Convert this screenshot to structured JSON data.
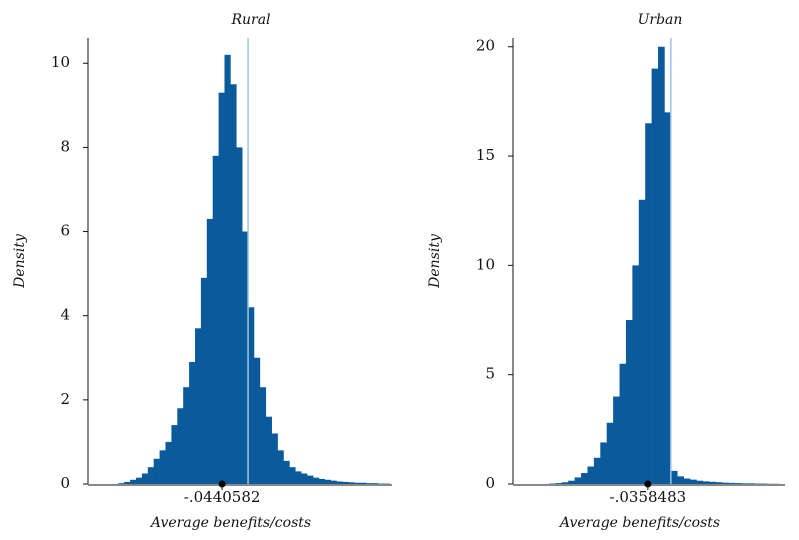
{
  "chart_data": [
    {
      "type": "histogram",
      "title": "Rural",
      "xlabel": "Average benefits/costs",
      "ylabel": "Density",
      "bins": [
        -0.22,
        -0.21,
        -0.2,
        -0.19,
        -0.18,
        -0.17,
        -0.16,
        -0.15,
        -0.14,
        -0.13,
        -0.12,
        -0.11,
        -0.1,
        -0.09,
        -0.08,
        -0.07,
        -0.06,
        -0.05,
        -0.04,
        -0.03,
        -0.02,
        -0.01,
        0,
        0.01,
        0.02,
        0.03,
        0.04,
        0.05,
        0.06,
        0.07,
        0.08,
        0.09,
        0.1,
        0.11,
        0.12,
        0.13,
        0.14,
        0.15,
        0.16,
        0.17,
        0.18,
        0.19,
        0.2,
        0.21,
        0.22,
        0.23,
        0.24
      ],
      "values": [
        0.02,
        0.05,
        0.1,
        0.15,
        0.25,
        0.4,
        0.6,
        0.8,
        1.0,
        1.4,
        1.8,
        2.3,
        2.9,
        3.7,
        4.9,
        6.3,
        7.8,
        9.3,
        10.2,
        9.5,
        8.0,
        6.0,
        4.2,
        3.0,
        2.3,
        1.6,
        1.2,
        0.8,
        0.55,
        0.4,
        0.3,
        0.25,
        0.2,
        0.15,
        0.12,
        0.1,
        0.08,
        0.06,
        0.05,
        0.04,
        0.03,
        0.03,
        0.02,
        0.02,
        0.01,
        0.01
      ],
      "color": "#0b5a9c",
      "xlim": [
        -0.268,
        0.244
      ],
      "xticks": [
        {
          "value": -0.0440582,
          "label": "-.0440582"
        }
      ],
      "ylim": [
        0,
        10.6
      ],
      "yticks": [
        0,
        2,
        4,
        6,
        8,
        10
      ],
      "refline": 0,
      "refline_color": "#9ec5e3"
    },
    {
      "type": "histogram",
      "title": "Urban",
      "xlabel": "Average benefits/costs",
      "ylabel": "Density",
      "bins": [
        -0.19,
        -0.18,
        -0.17,
        -0.16,
        -0.15,
        -0.14,
        -0.13,
        -0.12,
        -0.11,
        -0.1,
        -0.09,
        -0.08,
        -0.07,
        -0.06,
        -0.05,
        -0.04,
        -0.03,
        -0.02,
        -0.01,
        0,
        0.01,
        0.02,
        0.03,
        0.04,
        0.05,
        0.06,
        0.07,
        0.08,
        0.09,
        0.1,
        0.11,
        0.12,
        0.13,
        0.14,
        0.15,
        0.16,
        0.17
      ],
      "values": [
        0.02,
        0.04,
        0.08,
        0.15,
        0.3,
        0.5,
        0.8,
        1.2,
        1.9,
        2.8,
        4.0,
        5.5,
        7.5,
        10.0,
        13.0,
        16.5,
        19.0,
        20.0,
        17.0,
        0.6,
        0.35,
        0.25,
        0.2,
        0.15,
        0.12,
        0.1,
        0.08,
        0.06,
        0.05,
        0.04,
        0.03,
        0.03,
        0.02,
        0.02,
        0.01,
        0.01
      ],
      "color": "#0b5a9c",
      "xlim": [
        -0.243,
        0.178
      ],
      "xticks": [
        {
          "value": -0.0358483,
          "label": "-.0358483"
        }
      ],
      "ylim": [
        0,
        20.4
      ],
      "yticks": [
        0,
        5,
        10,
        15,
        20
      ],
      "refline": 0,
      "refline_color": "#9ec5e3"
    }
  ]
}
